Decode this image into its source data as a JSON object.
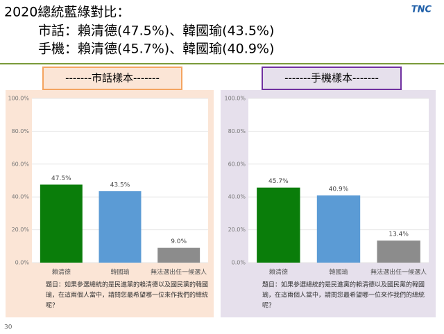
{
  "header": {
    "title": "2020總統藍綠對比：",
    "lines": [
      "市話：賴清德(47.5%)、韓國瑜(43.5%)",
      "手機：賴清德(45.7%)、韓國瑜(40.9%)"
    ],
    "logo": "TNC",
    "page": "30"
  },
  "chart_data": [
    {
      "type": "bar",
      "title": "-------市話樣本-------",
      "categories": [
        "賴清德",
        "韓國瑜",
        "無法選出任一候選人"
      ],
      "values": [
        47.5,
        43.5,
        9.0
      ],
      "value_labels": [
        "47.5%",
        "43.5%",
        "9.0%"
      ],
      "colors": [
        "#0a7d0a",
        "#5b9bd5",
        "#8c8c8c"
      ],
      "ylim": [
        0,
        100
      ],
      "yticks": [
        {
          "value": 0,
          "label": "0.0%"
        },
        {
          "value": 20,
          "label": "20.0%"
        },
        {
          "value": 40,
          "label": "40.0%"
        },
        {
          "value": 60,
          "label": "60.0%"
        },
        {
          "value": 80,
          "label": "80.0%"
        },
        {
          "value": 100,
          "label": "100.0%"
        }
      ],
      "grid": true,
      "note": [
        "題目：如果參選總統的是民進黨的賴清德以及國民黨的韓國",
        "瑜，在這兩個人當中，請問您最希望哪一位來作我們的總統",
        "呢？"
      ]
    },
    {
      "type": "bar",
      "title": "-------手機樣本-------",
      "categories": [
        "賴清德",
        "韓國瑜",
        "無法選出任一候選人"
      ],
      "values": [
        45.7,
        40.9,
        13.4
      ],
      "value_labels": [
        "45.7%",
        "40.9%",
        "13.4%"
      ],
      "colors": [
        "#0a7d0a",
        "#5b9bd5",
        "#8c8c8c"
      ],
      "ylim": [
        0,
        100
      ],
      "yticks": [
        {
          "value": 0,
          "label": "0.0%"
        },
        {
          "value": 20,
          "label": "20.0%"
        },
        {
          "value": 40,
          "label": "40.0%"
        },
        {
          "value": 60,
          "label": "60.0%"
        },
        {
          "value": 80,
          "label": "80.0%"
        },
        {
          "value": 100,
          "label": "100.0%"
        }
      ],
      "grid": true,
      "note": [
        "題目：如果參選總統的是民進黨的賴清德以及國民黨的韓國",
        "瑜，在這兩個人當中，請問您最希望哪一位來作我們的總統",
        "呢？"
      ]
    }
  ]
}
